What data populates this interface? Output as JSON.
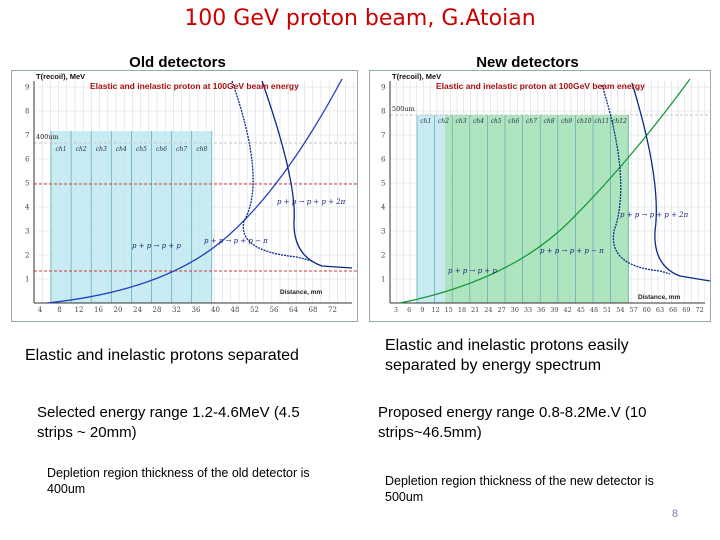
{
  "slide": {
    "title": "100 GeV proton beam, G.Atoian",
    "page_number": "8"
  },
  "left": {
    "heading": "Old detectors",
    "plot": {
      "title": "Elastic and inelastic proton at 100GeV beam energy",
      "ylabel": "T(recoil), MeV",
      "xlabel": "Distance, mm",
      "depth_label": "400um",
      "yticks": [
        "1",
        "2",
        "3",
        "4",
        "5",
        "6",
        "7",
        "8",
        "9"
      ],
      "xticks": [
        "4",
        "8",
        "12",
        "16",
        "20",
        "24",
        "28",
        "32",
        "36",
        "40",
        "48",
        "52",
        "56",
        "64",
        "68",
        "72"
      ],
      "channels": [
        "ch1",
        "ch2",
        "ch3",
        "ch4",
        "ch5",
        "ch6",
        "ch7",
        "ch8"
      ],
      "ann_right": "p + p → p + p + 2π",
      "ann_bottom": "p + p → p + p − π",
      "ann_left": "p + p → p + p"
    },
    "caption": "Elastic and inelastic protons separated",
    "range_text": "Selected energy range 1.2-4.6MeV (4.5 strips ~ 20mm)",
    "depletion_text": "Depletion region thickness of the old detector is 400um"
  },
  "right": {
    "heading": "New detectors",
    "plot": {
      "title": "Elastic and inelastic proton at 100GeV beam energy",
      "ylabel": "T(recoil), MeV",
      "xlabel": "Distance, mm",
      "depth_label": "500um",
      "yticks": [
        "1",
        "2",
        "3",
        "4",
        "5",
        "6",
        "7",
        "8",
        "9"
      ],
      "xticks": [
        "3",
        "6",
        "9",
        "12",
        "15",
        "18",
        "21",
        "24",
        "27",
        "30",
        "33",
        "36",
        "39",
        "42",
        "45",
        "48",
        "51",
        "54",
        "57",
        "60",
        "63",
        "66",
        "69",
        "72"
      ],
      "channels": [
        "ch1",
        "ch2",
        "ch3",
        "ch4",
        "ch5",
        "ch6",
        "ch7",
        "ch8",
        "ch9",
        "ch10",
        "ch11",
        "ch12"
      ],
      "ann_right": "p + p → p + p + 2π",
      "ann_bottom": "p + p → p + p − π",
      "ann_left": "p + p → p + p"
    },
    "caption": "Elastic and inelastic protons easily separated by energy spectrum",
    "range_text": "Proposed energy range 0.8-8.2Me.V (10 strips~46.5mm)",
    "depletion_text": "Depletion region thickness of the new detector is 500um"
  },
  "colors": {
    "title": "#cc0000",
    "cyan_band": "#bfe8f0",
    "green_band": "#a8e3b0",
    "elastic_curve": "#1f3fbf",
    "inelastic_curve": "#0b2a8a",
    "new_curve": "#1a9a3a",
    "dashed_red": "#d23a3a",
    "plot_title": "#aa1111"
  }
}
